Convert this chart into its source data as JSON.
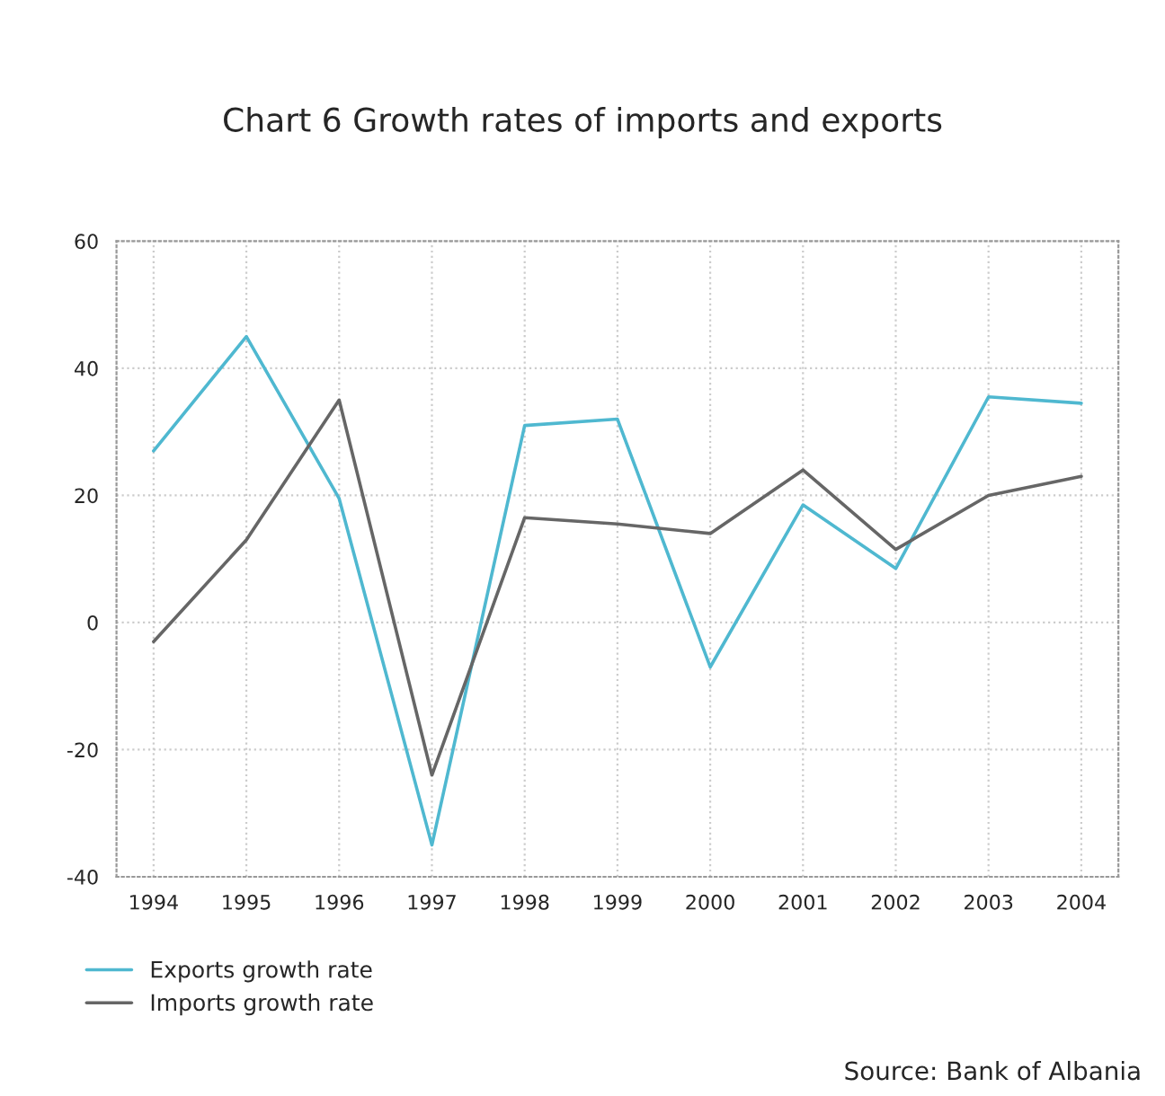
{
  "chart_data": {
    "type": "line",
    "title": "Chart 6 Growth rates of imports and exports",
    "categories": [
      "1994",
      "1995",
      "1996",
      "1997",
      "1998",
      "1999",
      "2000",
      "2001",
      "2002",
      "2003",
      "2004"
    ],
    "series": [
      {
        "name": "Exports growth rate",
        "color": "#4fb8d0",
        "values": [
          27,
          45,
          19.5,
          -35,
          31,
          32,
          -7,
          18.5,
          8.5,
          35.5,
          34.5
        ]
      },
      {
        "name": "Imports growth rate",
        "color": "#666666",
        "values": [
          -3,
          13,
          35,
          -24,
          16.5,
          15.5,
          14,
          24,
          11.5,
          20,
          23
        ]
      }
    ],
    "ylim": [
      -40,
      60
    ],
    "yticks": [
      -40,
      -20,
      0,
      20,
      40,
      60
    ],
    "grid": true,
    "legend": "bottom left",
    "marker": "none",
    "line_style": "solid",
    "annotations": [
      "Source: Bank of Albania"
    ]
  }
}
